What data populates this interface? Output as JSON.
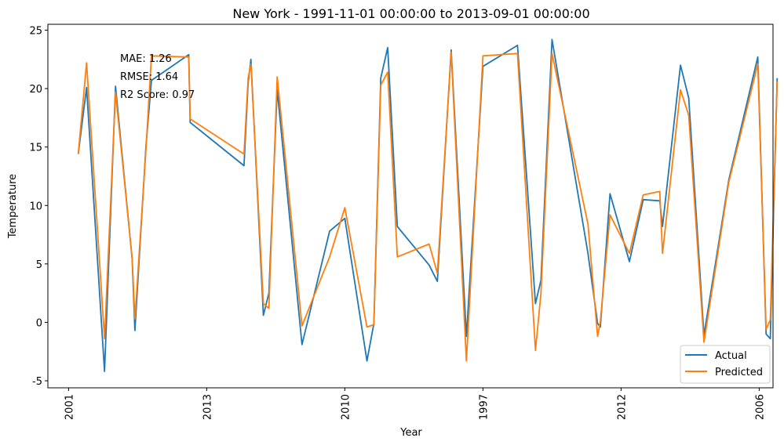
{
  "chart_data": {
    "type": "line",
    "title": "New York - 1991-11-01 00:00:00 to 2013-09-01 00:00:00",
    "xlabel": "Year",
    "ylabel": "Temperature",
    "ylim": [
      -5.6,
      25.5
    ],
    "xlim": [
      -1.5,
      51
    ],
    "yticks": [
      -5,
      0,
      5,
      10,
      15,
      20,
      25
    ],
    "xticks": [
      {
        "pos": 0,
        "label": "2001"
      },
      {
        "pos": 10,
        "label": "2013"
      },
      {
        "pos": 20,
        "label": "2010"
      },
      {
        "pos": 30,
        "label": "1997"
      },
      {
        "pos": 40,
        "label": "2012"
      },
      {
        "pos": 50,
        "label": "2006"
      }
    ],
    "annotations": [
      "MAE: 1.26",
      "RMSE: 1.64",
      "R2 Score: 0.97"
    ],
    "legend_position": "lower-right",
    "grid": false,
    "series": [
      {
        "name": "Actual",
        "color": "#1f77b4",
        "points": [
          [
            0.7,
            14.4
          ],
          [
            1.3,
            20.1
          ],
          [
            2.6,
            -4.2
          ],
          [
            3.4,
            20.2
          ],
          [
            4.6,
            5.4
          ],
          [
            4.8,
            -0.7
          ],
          [
            5.6,
            15.1
          ],
          [
            6.0,
            20.7
          ],
          [
            8.7,
            22.9
          ],
          [
            8.8,
            17.1
          ],
          [
            12.7,
            13.4
          ],
          [
            13.0,
            20.5
          ],
          [
            13.2,
            22.5
          ],
          [
            14.1,
            0.6
          ],
          [
            14.5,
            2.5
          ],
          [
            15.1,
            19.9
          ],
          [
            16.9,
            -1.9
          ],
          [
            18.9,
            7.8
          ],
          [
            20.0,
            8.9
          ],
          [
            21.6,
            -3.3
          ],
          [
            22.1,
            -0.1
          ],
          [
            22.6,
            20.9
          ],
          [
            23.1,
            23.5
          ],
          [
            23.8,
            8.2
          ],
          [
            26.1,
            4.9
          ],
          [
            26.7,
            3.5
          ],
          [
            27.7,
            23.3
          ],
          [
            28.8,
            -1.2
          ],
          [
            30.0,
            21.9
          ],
          [
            32.5,
            23.7
          ],
          [
            33.8,
            1.6
          ],
          [
            34.2,
            3.6
          ],
          [
            35.0,
            24.2
          ],
          [
            37.6,
            5.9
          ],
          [
            38.3,
            -0.1
          ],
          [
            38.5,
            -0.4
          ],
          [
            39.2,
            11.0
          ],
          [
            40.6,
            5.2
          ],
          [
            41.6,
            10.5
          ],
          [
            42.8,
            10.4
          ],
          [
            43.0,
            8.2
          ],
          [
            44.3,
            22.0
          ],
          [
            44.9,
            19.2
          ],
          [
            46.0,
            -1.1
          ],
          [
            47.8,
            12.2
          ],
          [
            49.9,
            22.7
          ],
          [
            50.5,
            -1.0
          ],
          [
            50.8,
            -1.4
          ],
          [
            51.3,
            20.9
          ]
        ]
      },
      {
        "name": "Predicted",
        "color": "#ff7f0e",
        "points": [
          [
            0.7,
            14.4
          ],
          [
            1.3,
            22.2
          ],
          [
            2.6,
            -1.4
          ],
          [
            3.4,
            19.7
          ],
          [
            4.6,
            5.5
          ],
          [
            4.8,
            0.3
          ],
          [
            5.6,
            14.8
          ],
          [
            6.0,
            22.8
          ],
          [
            8.7,
            22.7
          ],
          [
            8.8,
            17.4
          ],
          [
            12.7,
            14.4
          ],
          [
            13.0,
            20.9
          ],
          [
            13.2,
            22.1
          ],
          [
            14.1,
            1.6
          ],
          [
            14.5,
            1.2
          ],
          [
            15.1,
            21.0
          ],
          [
            16.9,
            -0.3
          ],
          [
            18.9,
            5.6
          ],
          [
            20.0,
            9.8
          ],
          [
            21.6,
            -0.4
          ],
          [
            22.1,
            -0.2
          ],
          [
            22.6,
            20.3
          ],
          [
            23.1,
            21.4
          ],
          [
            23.8,
            5.6
          ],
          [
            26.1,
            6.7
          ],
          [
            26.7,
            4.2
          ],
          [
            27.7,
            23.1
          ],
          [
            28.8,
            -3.3
          ],
          [
            30.0,
            22.8
          ],
          [
            32.5,
            23.0
          ],
          [
            33.8,
            -2.4
          ],
          [
            34.2,
            2.5
          ],
          [
            35.0,
            23.0
          ],
          [
            37.6,
            8.4
          ],
          [
            38.3,
            -1.2
          ],
          [
            38.5,
            0.1
          ],
          [
            39.2,
            9.2
          ],
          [
            40.6,
            5.9
          ],
          [
            41.6,
            10.9
          ],
          [
            42.8,
            11.2
          ],
          [
            43.0,
            5.9
          ],
          [
            44.3,
            19.9
          ],
          [
            44.9,
            17.7
          ],
          [
            46.0,
            -1.7
          ],
          [
            47.8,
            12.0
          ],
          [
            49.9,
            22.1
          ],
          [
            50.5,
            -0.6
          ],
          [
            50.8,
            0.2
          ],
          [
            51.3,
            20.6
          ]
        ]
      }
    ]
  }
}
